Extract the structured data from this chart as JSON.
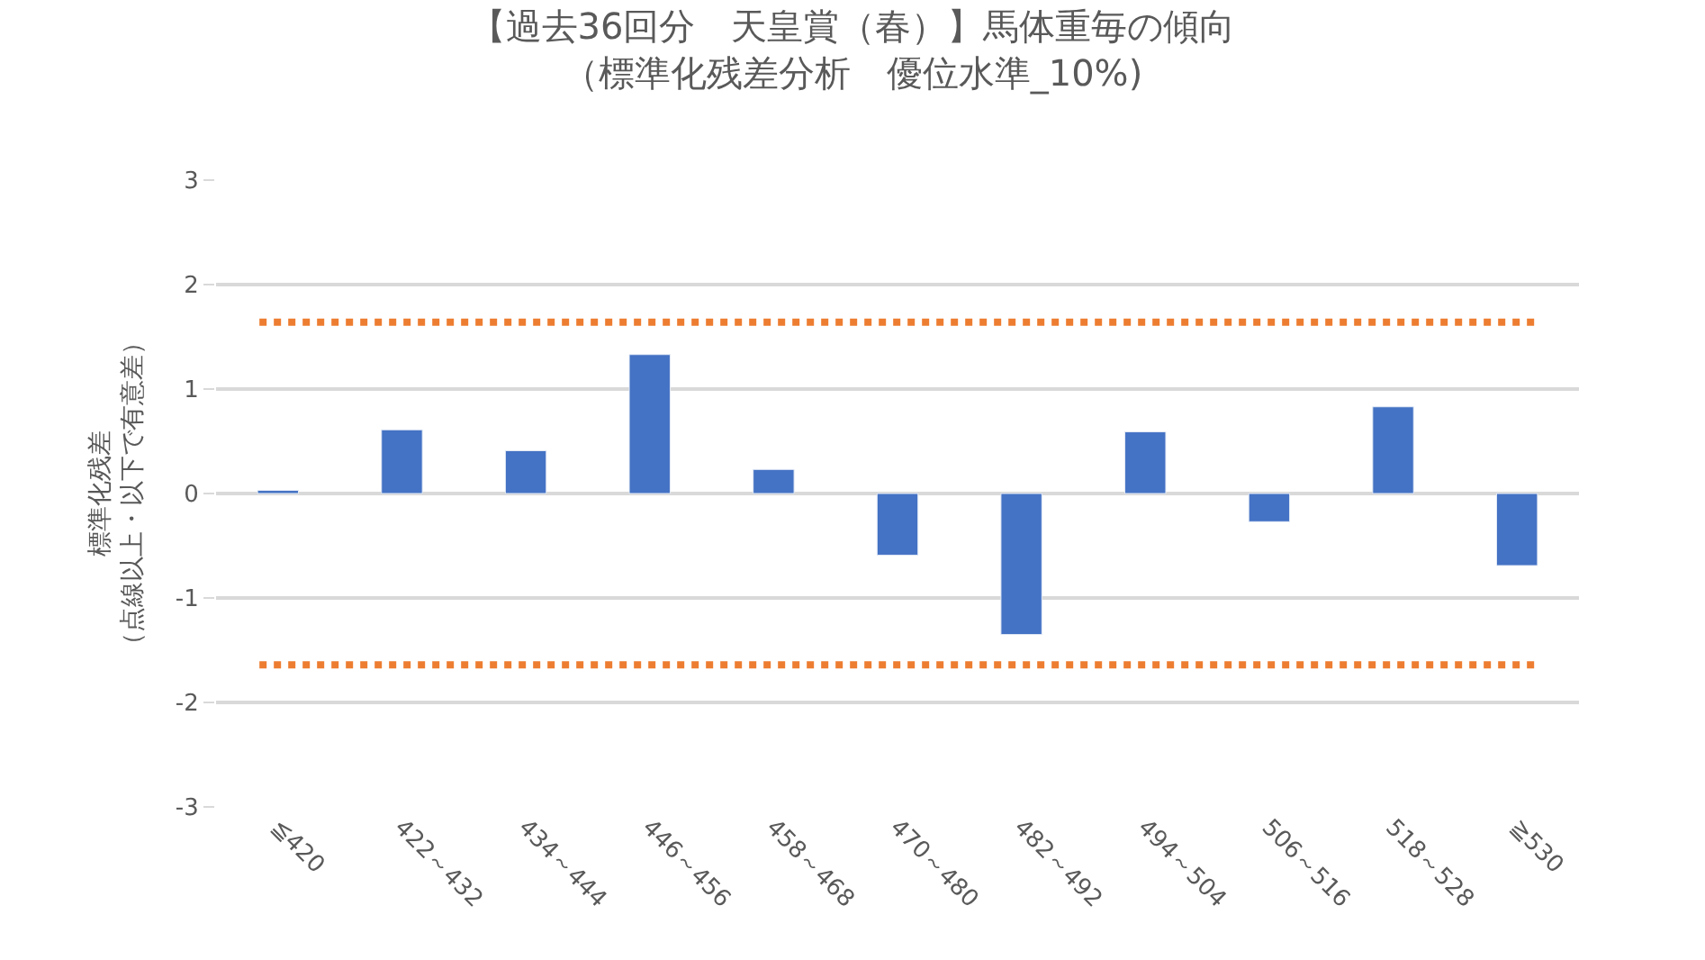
{
  "chart_data": {
    "type": "bar",
    "title": "【過去36回分　天皇賞（春）】馬体重毎の傾向",
    "subtitle": "（標準化残差分析　優位水準_10%)",
    "ylabel": "標準化残差（点線以上・以下で有意差）",
    "categories": [
      "≦420",
      "422～432",
      "434～444",
      "446～456",
      "458～468",
      "470～480",
      "482～492",
      "494～504",
      "506～516",
      "518～528",
      "≧530"
    ],
    "values": [
      0.03,
      0.61,
      0.41,
      1.33,
      0.23,
      -0.59,
      -1.35,
      0.59,
      -0.27,
      0.83,
      -0.69
    ],
    "color": "#4472c4",
    "ylim": [
      -3,
      3
    ],
    "yticks": [
      -3,
      -2,
      -1,
      0,
      1,
      2,
      3
    ],
    "grid": "y",
    "ref_lines": [
      {
        "axis": "y",
        "value": 1.64,
        "color": "#ed7d31",
        "line_style": "dotted"
      },
      {
        "axis": "y",
        "value": -1.64,
        "color": "#ed7d31",
        "line_style": "dotted"
      }
    ]
  }
}
